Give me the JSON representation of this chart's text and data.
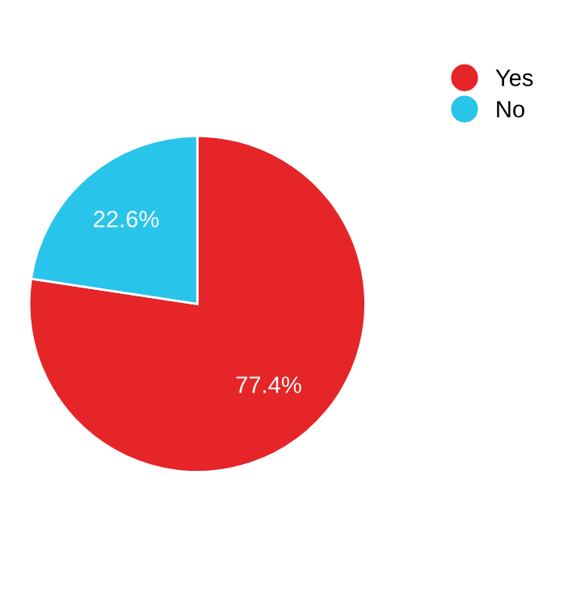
{
  "chart_data": {
    "type": "pie",
    "categories": [
      "Yes",
      "No"
    ],
    "values": [
      77.4,
      22.6
    ],
    "colors": [
      "#e52527",
      "#29c4ea"
    ],
    "value_labels": [
      "77.4%",
      "22.6%"
    ],
    "legend": "top right"
  }
}
